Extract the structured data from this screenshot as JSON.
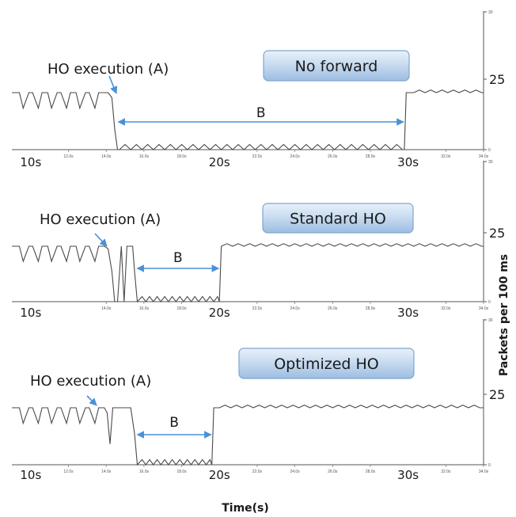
{
  "figure": {
    "ylabel": "Packets per 100 ms",
    "xlabel": "Time(s)"
  },
  "chart_data": [
    {
      "type": "line",
      "title": "No forward",
      "annotation_ho": "HO execution (A)",
      "annotation_gap": "B",
      "xlim": [
        9.0,
        34.0
      ],
      "ylim": [
        0,
        30
      ],
      "big_ticks": [
        {
          "x": 10,
          "label": "10s"
        },
        {
          "x": 20,
          "label": "20s"
        },
        {
          "x": 30,
          "label": "30s"
        }
      ],
      "small_ticks": [
        {
          "x": 12,
          "label": "12.0s"
        },
        {
          "x": 14,
          "label": "14.0s"
        },
        {
          "x": 16,
          "label": "16.0s"
        },
        {
          "x": 18,
          "label": "18.0s"
        },
        {
          "x": 22,
          "label": "22.0s"
        },
        {
          "x": 24,
          "label": "24.0s"
        },
        {
          "x": 26,
          "label": "26.0s"
        },
        {
          "x": 28,
          "label": "28.0s"
        },
        {
          "x": 32,
          "label": "32.0s"
        },
        {
          "x": 34,
          "label": "34.0s"
        }
      ],
      "y_ticks": [
        {
          "y": 30,
          "label": "30"
        },
        {
          "y": 25,
          "label": "25"
        },
        {
          "y": 0,
          "label": "0"
        }
      ],
      "ho_x": 14.5,
      "gap": [
        14.6,
        29.8
      ],
      "series": [
        {
          "x": [
            9.0,
            9.4,
            9.6,
            9.9,
            10.1,
            10.4,
            10.6,
            10.9,
            11.1,
            11.4,
            11.6,
            11.9,
            12.1,
            12.4,
            12.6,
            12.9,
            13.1,
            13.4,
            13.6,
            13.9,
            14.1,
            14.3,
            14.45,
            14.6,
            14.7,
            15.0,
            15.3,
            15.6,
            15.9,
            16.2,
            16.5,
            16.8,
            17.1,
            17.4,
            17.7,
            18.0,
            18.3,
            18.6,
            18.9,
            19.2,
            19.5,
            19.8,
            20.1,
            20.4,
            20.7,
            21.0,
            21.3,
            21.6,
            21.9,
            22.2,
            22.5,
            22.8,
            23.1,
            23.4,
            23.7,
            24.0,
            24.3,
            24.6,
            24.9,
            25.2,
            25.5,
            25.8,
            26.1,
            26.4,
            26.7,
            27.0,
            27.3,
            27.6,
            27.9,
            28.2,
            28.5,
            28.8,
            29.1,
            29.4,
            29.7,
            29.8,
            29.9,
            30.3,
            30.6,
            30.9,
            31.2,
            31.5,
            31.8,
            32.1,
            32.4,
            32.7,
            33.0,
            33.3,
            33.6,
            33.9,
            34.0
          ],
          "y": [
            22,
            22,
            16,
            22,
            22,
            16,
            22,
            22,
            16,
            22,
            22,
            16,
            22,
            22,
            16,
            22,
            22,
            16,
            22,
            22,
            22,
            20,
            8,
            0,
            0,
            2,
            0,
            2,
            0,
            2,
            0,
            2,
            0,
            2,
            0,
            2,
            0,
            2,
            0,
            2,
            0,
            2,
            0,
            2,
            0,
            2,
            0,
            2,
            0,
            2,
            0,
            2,
            0,
            2,
            0,
            2,
            0,
            2,
            0,
            2,
            0,
            2,
            0,
            2,
            0,
            2,
            0,
            2,
            0,
            2,
            0,
            2,
            0,
            2,
            0,
            0,
            22,
            22,
            23,
            22,
            23,
            22,
            23,
            22,
            23,
            22,
            23,
            22,
            23,
            22,
            22
          ]
        }
      ]
    },
    {
      "type": "line",
      "title": "Standard HO",
      "annotation_ho": "HO execution (A)",
      "annotation_gap": "B",
      "xlim": [
        9.0,
        34.0
      ],
      "ylim": [
        0,
        30
      ],
      "big_ticks": [
        {
          "x": 10,
          "label": "10s"
        },
        {
          "x": 20,
          "label": "20s"
        },
        {
          "x": 30,
          "label": "30s"
        }
      ],
      "small_ticks": [
        {
          "x": 14,
          "label": "14.0s"
        },
        {
          "x": 16,
          "label": "16.0s"
        },
        {
          "x": 18,
          "label": "18.0s"
        },
        {
          "x": 22,
          "label": "22.0s"
        },
        {
          "x": 24,
          "label": "24.0s"
        },
        {
          "x": 26,
          "label": "26.0s"
        },
        {
          "x": 28,
          "label": "28.0s"
        },
        {
          "x": 32,
          "label": "32.0s"
        },
        {
          "x": 34,
          "label": "34.0s"
        }
      ],
      "y_ticks": [
        {
          "y": 30,
          "label": "30"
        },
        {
          "y": 25,
          "label": "25"
        },
        {
          "y": 0,
          "label": "0"
        }
      ],
      "ho_x": 14.2,
      "gap": [
        15.6,
        20.0
      ],
      "series": [
        {
          "x": [
            9.0,
            9.4,
            9.6,
            9.9,
            10.1,
            10.4,
            10.6,
            10.9,
            11.1,
            11.4,
            11.6,
            11.9,
            12.1,
            12.4,
            12.6,
            12.9,
            13.1,
            13.4,
            13.6,
            13.9,
            14.1,
            14.3,
            14.45,
            14.6,
            14.8,
            14.95,
            15.1,
            15.25,
            15.4,
            15.5,
            15.65,
            15.9,
            16.1,
            16.3,
            16.5,
            16.7,
            16.9,
            17.1,
            17.3,
            17.5,
            17.7,
            17.9,
            18.1,
            18.3,
            18.5,
            18.7,
            18.9,
            19.1,
            19.3,
            19.5,
            19.7,
            19.9,
            20.0,
            20.1,
            20.4,
            20.7,
            21.0,
            21.3,
            21.6,
            21.9,
            22.2,
            22.5,
            22.8,
            23.1,
            23.4,
            23.7,
            24.0,
            24.3,
            24.6,
            24.9,
            25.2,
            25.5,
            25.8,
            26.1,
            26.4,
            26.7,
            27.0,
            27.3,
            27.6,
            27.9,
            28.2,
            28.5,
            28.8,
            29.1,
            29.4,
            29.7,
            30.0,
            30.3,
            30.6,
            30.9,
            31.2,
            31.5,
            31.8,
            32.1,
            32.4,
            32.7,
            33.0,
            33.3,
            33.6,
            33.9,
            34.0
          ],
          "y": [
            22,
            22,
            16,
            22,
            22,
            16,
            22,
            22,
            16,
            22,
            22,
            16,
            22,
            22,
            16,
            22,
            22,
            16,
            22,
            22,
            21,
            12,
            0,
            0,
            22,
            0,
            22,
            22,
            22,
            12,
            0,
            2,
            0,
            2,
            0,
            2,
            0,
            2,
            0,
            2,
            0,
            2,
            0,
            2,
            0,
            2,
            0,
            2,
            0,
            2,
            0,
            2,
            0,
            22,
            23,
            22,
            23,
            22,
            23,
            22,
            23,
            22,
            23,
            22,
            23,
            22,
            23,
            22,
            23,
            22,
            23,
            22,
            23,
            22,
            23,
            22,
            23,
            22,
            23,
            22,
            23,
            22,
            23,
            22,
            23,
            22,
            23,
            22,
            23,
            22,
            23,
            22,
            23,
            22,
            23,
            22,
            23,
            22,
            23,
            22,
            22
          ]
        }
      ]
    },
    {
      "type": "line",
      "title": "Optimized HO",
      "annotation_ho": "HO execution (A)",
      "annotation_gap": "B",
      "xlim": [
        9.0,
        34.0
      ],
      "ylim": [
        0,
        30
      ],
      "big_ticks": [
        {
          "x": 10,
          "label": "10s"
        },
        {
          "x": 20,
          "label": "20s"
        },
        {
          "x": 30,
          "label": "30s"
        }
      ],
      "small_ticks": [
        {
          "x": 12,
          "label": "12.0s"
        },
        {
          "x": 14,
          "label": "14.0s"
        },
        {
          "x": 16,
          "label": "16.0s"
        },
        {
          "x": 18,
          "label": "18.0s"
        },
        {
          "x": 22,
          "label": "22.0s"
        },
        {
          "x": 24,
          "label": "24.0s"
        },
        {
          "x": 26,
          "label": "26.0s"
        },
        {
          "x": 28,
          "label": "28.0s"
        },
        {
          "x": 32,
          "label": "32.0s"
        },
        {
          "x": 34,
          "label": "34.0s"
        }
      ],
      "y_ticks": [
        {
          "y": 30,
          "label": "30"
        },
        {
          "y": 25,
          "label": "25"
        },
        {
          "y": 0,
          "label": "0"
        }
      ],
      "ho_x": 14.0,
      "gap": [
        15.6,
        19.6
      ],
      "series": [
        {
          "x": [
            9.0,
            9.4,
            9.6,
            9.9,
            10.1,
            10.4,
            10.6,
            10.9,
            11.1,
            11.4,
            11.6,
            11.9,
            12.1,
            12.4,
            12.6,
            12.9,
            13.1,
            13.4,
            13.6,
            13.9,
            14.05,
            14.2,
            14.35,
            14.6,
            15.0,
            15.3,
            15.5,
            15.65,
            15.9,
            16.1,
            16.3,
            16.5,
            16.7,
            16.9,
            17.1,
            17.3,
            17.5,
            17.7,
            17.9,
            18.1,
            18.3,
            18.5,
            18.7,
            18.9,
            19.1,
            19.3,
            19.5,
            19.6,
            19.7,
            20.0,
            20.3,
            20.6,
            20.9,
            21.2,
            21.5,
            21.8,
            22.1,
            22.4,
            22.7,
            23.0,
            23.3,
            23.6,
            23.9,
            24.2,
            24.5,
            24.8,
            25.1,
            25.4,
            25.7,
            26.0,
            26.3,
            26.6,
            26.9,
            27.2,
            27.5,
            27.8,
            28.1,
            28.4,
            28.7,
            29.0,
            29.3,
            29.6,
            29.9,
            30.2,
            30.5,
            30.8,
            31.1,
            31.4,
            31.7,
            32.0,
            32.3,
            32.6,
            32.9,
            33.2,
            33.5,
            33.8,
            34.0
          ],
          "y": [
            22,
            22,
            16,
            22,
            22,
            16,
            22,
            22,
            16,
            22,
            22,
            16,
            22,
            22,
            16,
            22,
            22,
            16,
            22,
            22,
            20,
            8,
            22,
            22,
            22,
            22,
            12,
            0,
            2,
            0,
            2,
            0,
            2,
            0,
            2,
            0,
            2,
            0,
            2,
            0,
            2,
            0,
            2,
            0,
            2,
            0,
            2,
            0,
            22,
            22,
            23,
            22,
            23,
            22,
            23,
            22,
            23,
            22,
            23,
            22,
            23,
            22,
            23,
            22,
            23,
            22,
            23,
            22,
            23,
            22,
            23,
            22,
            23,
            22,
            23,
            22,
            23,
            22,
            23,
            22,
            23,
            22,
            23,
            22,
            23,
            22,
            23,
            22,
            23,
            22,
            23,
            22,
            23,
            22,
            23,
            22,
            22
          ]
        }
      ]
    }
  ]
}
